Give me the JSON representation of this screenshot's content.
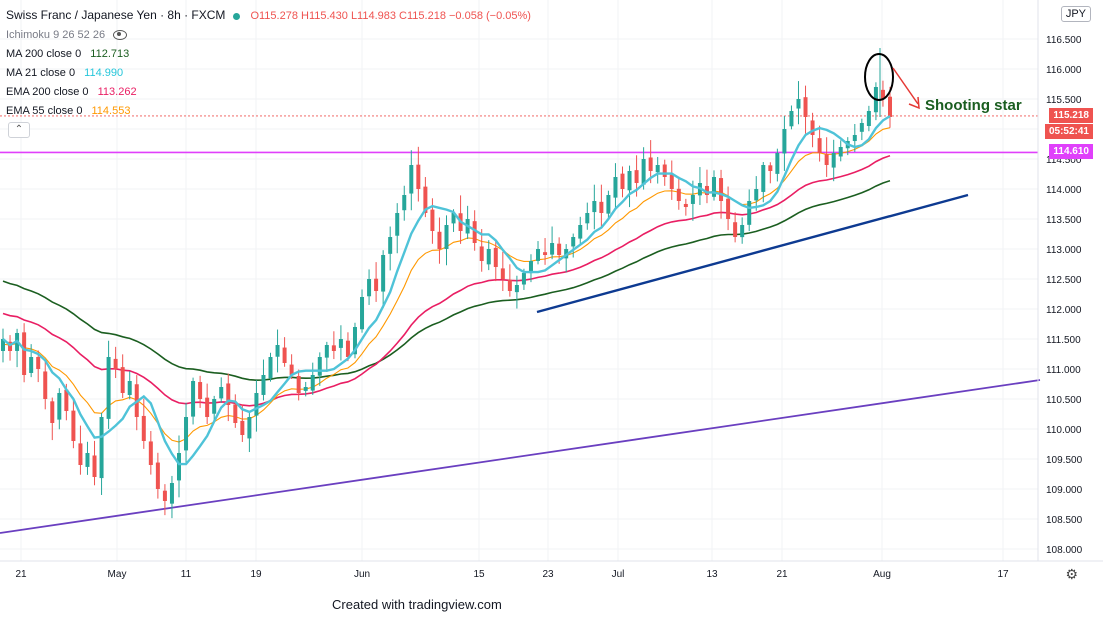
{
  "legend": {
    "symbol_title": "Swiss Franc / Japanese Yen · 8h · FXCM",
    "ohlc": "O115.278  H115.430  L114.983  C115.218  −0.058 (−0.05%)",
    "indicators": [
      {
        "label": "Ichimoku 9 26 52 26",
        "value": "",
        "color": "#787b86"
      },
      {
        "label": "MA 200 close 0",
        "value": "112.713",
        "color": "#1b5e20"
      },
      {
        "label": "MA 21 close 0",
        "value": "114.990",
        "color": "#26c6da"
      },
      {
        "label": "EMA 200 close 0",
        "value": "113.262",
        "color": "#e91e63"
      },
      {
        "label": "EMA 55 close 0",
        "value": "114.553",
        "color": "#ff9800"
      }
    ]
  },
  "currency": "JPY",
  "price_tags": {
    "last": "115.218",
    "countdown": "05:52:41",
    "level": "114.610"
  },
  "annotation": "Shooting star",
  "footer": "Created with tradingview.com",
  "colors": {
    "up": "#26a69a",
    "down": "#ef5350",
    "ma21": "#4fc3d8",
    "ema55": "#ff9800",
    "ema200": "#e91e63",
    "ma200": "#1b5e20",
    "trend_blue": "#0d3a91",
    "trend_purple": "#6a3fc0",
    "level": "#e040fb"
  },
  "chart_data": {
    "type": "candlestick",
    "title": "Swiss Franc / Japanese Yen · 8h · FXCM",
    "ylim": [
      107.9,
      116.9
    ],
    "y_ticks": [
      108.0,
      108.5,
      109.0,
      109.5,
      110.0,
      110.5,
      111.0,
      111.5,
      112.0,
      112.5,
      113.0,
      113.5,
      114.0,
      114.5,
      115.0,
      115.5,
      116.0,
      116.5
    ],
    "x_ticks": [
      "21",
      "May",
      "11",
      "19",
      "Jun",
      "15",
      "23",
      "Jul",
      "13",
      "21",
      "Aug",
      "17"
    ],
    "x_tick_t": [
      21,
      117,
      186,
      256,
      362,
      479,
      548,
      618,
      712,
      782,
      882,
      1003
    ],
    "closes": [
      111.5,
      111.3,
      111.6,
      110.9,
      111.2,
      111.0,
      110.5,
      110.1,
      110.6,
      110.3,
      109.8,
      109.4,
      109.6,
      109.2,
      110.2,
      111.2,
      111.0,
      110.6,
      110.8,
      110.2,
      109.8,
      109.4,
      109.0,
      108.8,
      109.1,
      109.6,
      110.2,
      110.8,
      110.5,
      110.2,
      110.5,
      110.7,
      110.4,
      110.1,
      109.9,
      110.2,
      110.6,
      110.9,
      111.2,
      111.4,
      111.1,
      110.9,
      110.6,
      110.7,
      110.9,
      111.2,
      111.4,
      111.3,
      111.5,
      111.2,
      111.7,
      112.2,
      112.5,
      112.3,
      112.9,
      113.2,
      113.6,
      113.9,
      114.4,
      114.0,
      113.6,
      113.3,
      113.0,
      113.4,
      113.6,
      113.3,
      113.5,
      113.1,
      112.8,
      113.0,
      112.7,
      112.5,
      112.3,
      112.4,
      112.6,
      112.8,
      113.0,
      112.9,
      113.1,
      112.9,
      113.0,
      113.2,
      113.4,
      113.6,
      113.8,
      113.6,
      113.9,
      114.2,
      114.0,
      114.3,
      114.1,
      114.5,
      114.3,
      114.4,
      114.2,
      114.0,
      113.8,
      113.7,
      113.9,
      114.1,
      113.9,
      114.2,
      113.8,
      113.5,
      113.2,
      113.4,
      113.8,
      114.0,
      114.4,
      114.3,
      114.6,
      115.0,
      115.3,
      115.5,
      115.2,
      114.9,
      114.6,
      114.4,
      114.6,
      114.7,
      114.8,
      114.9,
      115.1,
      115.3,
      115.7,
      115.5,
      115.2
    ]
  },
  "trendlines": [
    {
      "name": "blue",
      "from": [
        "22 Jun",
        112.05
      ],
      "to": [
        "12 Aug",
        114.0
      ]
    },
    {
      "name": "purple",
      "from": [
        "start",
        108.35
      ],
      "to": [
        "end",
        110.9
      ]
    }
  ],
  "level_line": 114.61
}
